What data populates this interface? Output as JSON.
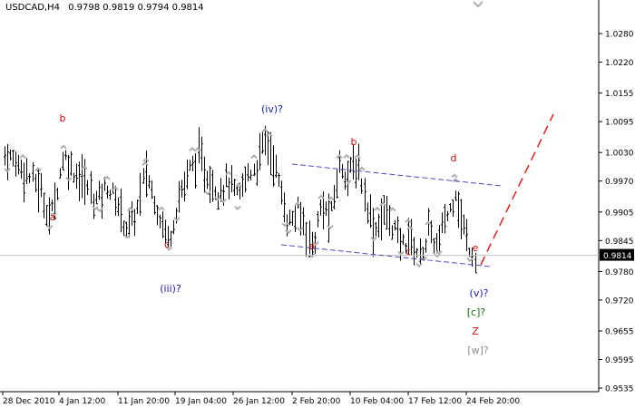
{
  "header": {
    "symbol_timeframe": "USDCAD,H4",
    "ohlc": "0.9798 0.9819 0.9794 0.9814"
  },
  "colors": {
    "background": "#ffffff",
    "bars": "#000000",
    "axis": "#000000",
    "fractal_markers": "#b0b0b0",
    "channel_lines": "#4a4ac8",
    "forecast_line": "#e02020",
    "price_line": "#c0c0c0",
    "label_red": "#d01010",
    "label_blue": "#1a1ab0",
    "label_green": "#107010",
    "label_gray": "#8a8a8a"
  },
  "chart_data": {
    "type": "bar",
    "title": "USDCAD,H4",
    "y_ticks": [
      "1.0280",
      "1.0220",
      "1.0155",
      "1.0095",
      "1.0030",
      "0.9970",
      "0.9905",
      "0.9845",
      "0.9780",
      "0.9720",
      "0.9655",
      "0.9595",
      "0.9535"
    ],
    "x_ticks": [
      "28 Dec 2010",
      "4 Jan 12:00",
      "11 Jan 20:00",
      "19 Jan 04:00",
      "26 Jan 12:00",
      "2 Feb 20:00",
      "10 Feb 04:00",
      "17 Feb 12:00",
      "24 Feb 20:00"
    ],
    "current_price": "0.9814",
    "ylim": [
      0.9535,
      1.032
    ],
    "wave_labels": [
      {
        "text": "b",
        "color": "red",
        "at": "3 Jan",
        "y": 1.0085
      },
      {
        "text": "a",
        "color": "red",
        "at": "5 Jan",
        "y": 0.9848
      },
      {
        "text": "c",
        "color": "red",
        "at": "17 Jan",
        "y": 0.9795
      },
      {
        "text": "(iii)?",
        "color": "blue",
        "at": "17 Jan",
        "y": 0.9755
      },
      {
        "text": "(iv)?",
        "color": "blue",
        "at": "27 Jan",
        "y": 1.0115
      },
      {
        "text": "b",
        "color": "red",
        "at": "5 Feb",
        "y": 1.0055
      },
      {
        "text": "a",
        "color": "red",
        "at": "3 Feb",
        "y": 0.9795
      },
      {
        "text": "d",
        "color": "red",
        "at": "20 Feb",
        "y": 1.002
      },
      {
        "text": "c",
        "color": "red",
        "at": "14 Feb",
        "y": 0.9788
      },
      {
        "text": "e",
        "color": "red",
        "at": "23 Feb",
        "y": 0.976
      },
      {
        "text": "(v)?",
        "color": "blue",
        "at": "24 Feb",
        "y": 0.9728
      },
      {
        "text": "[c]?",
        "color": "green",
        "at": "24 Feb",
        "y": 0.9698
      },
      {
        "text": "Z",
        "color": "red",
        "at": "24 Feb",
        "y": 0.9668
      },
      {
        "text": "[w]?",
        "color": "gray",
        "at": "24 Feb",
        "y": 0.9638
      }
    ]
  }
}
